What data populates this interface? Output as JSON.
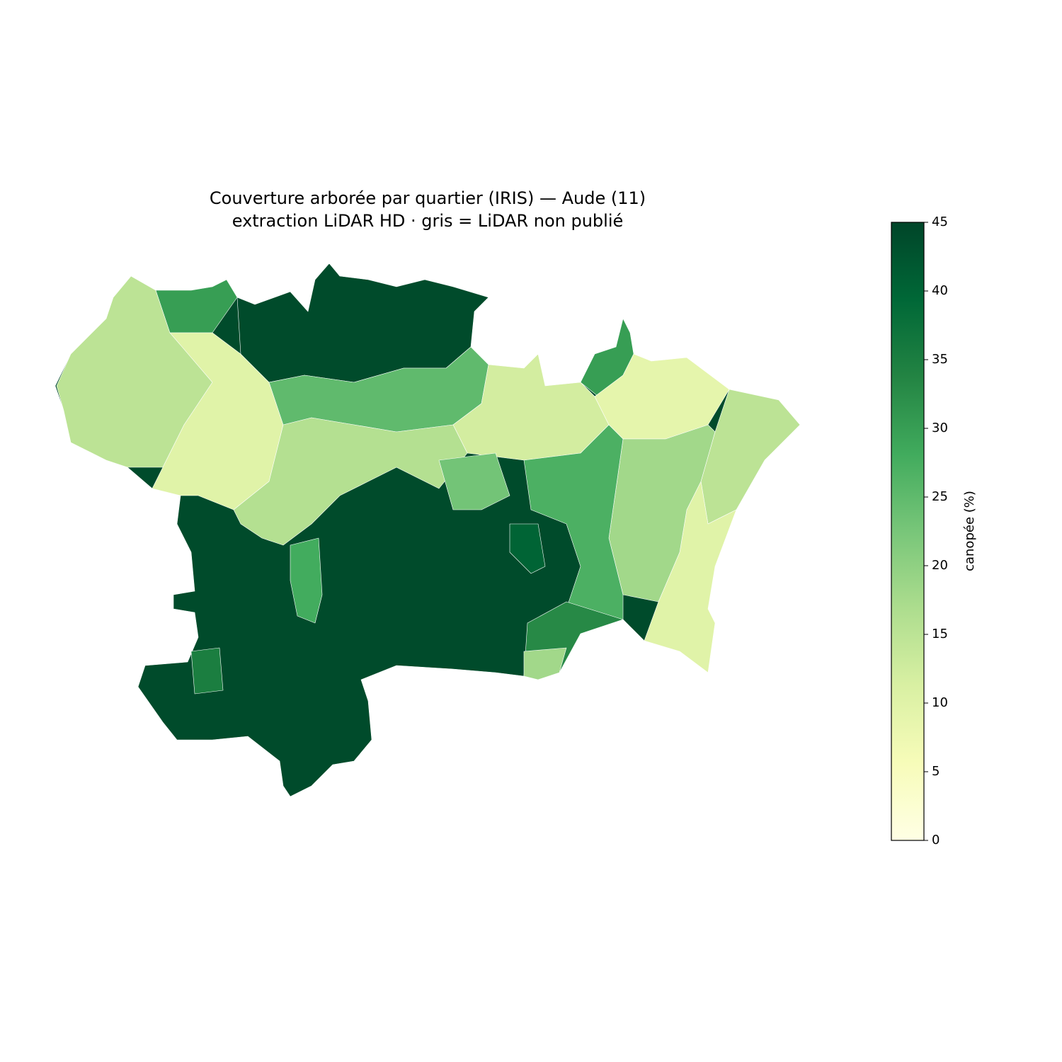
{
  "chart_data": {
    "type": "choropleth",
    "title": "Couverture arborée par quartier (IRIS) — Aude (11)",
    "subtitle": "extraction LiDAR HD · gris = LiDAR non publié",
    "colorbar_label": "canopée (%)",
    "clim": [
      0,
      45
    ],
    "cticks": [
      0,
      5,
      10,
      15,
      20,
      25,
      30,
      35,
      40,
      45
    ],
    "colormap": [
      "#ffffe5",
      "#f7fcb9",
      "#d9f0a3",
      "#addd8e",
      "#78c679",
      "#41ab5d",
      "#238443",
      "#006837",
      "#004529"
    ],
    "values": [
      44,
      15,
      30,
      10,
      44,
      25,
      12,
      30,
      9,
      15,
      10,
      18,
      27,
      33,
      18,
      16,
      28,
      35,
      40,
      23
    ]
  }
}
